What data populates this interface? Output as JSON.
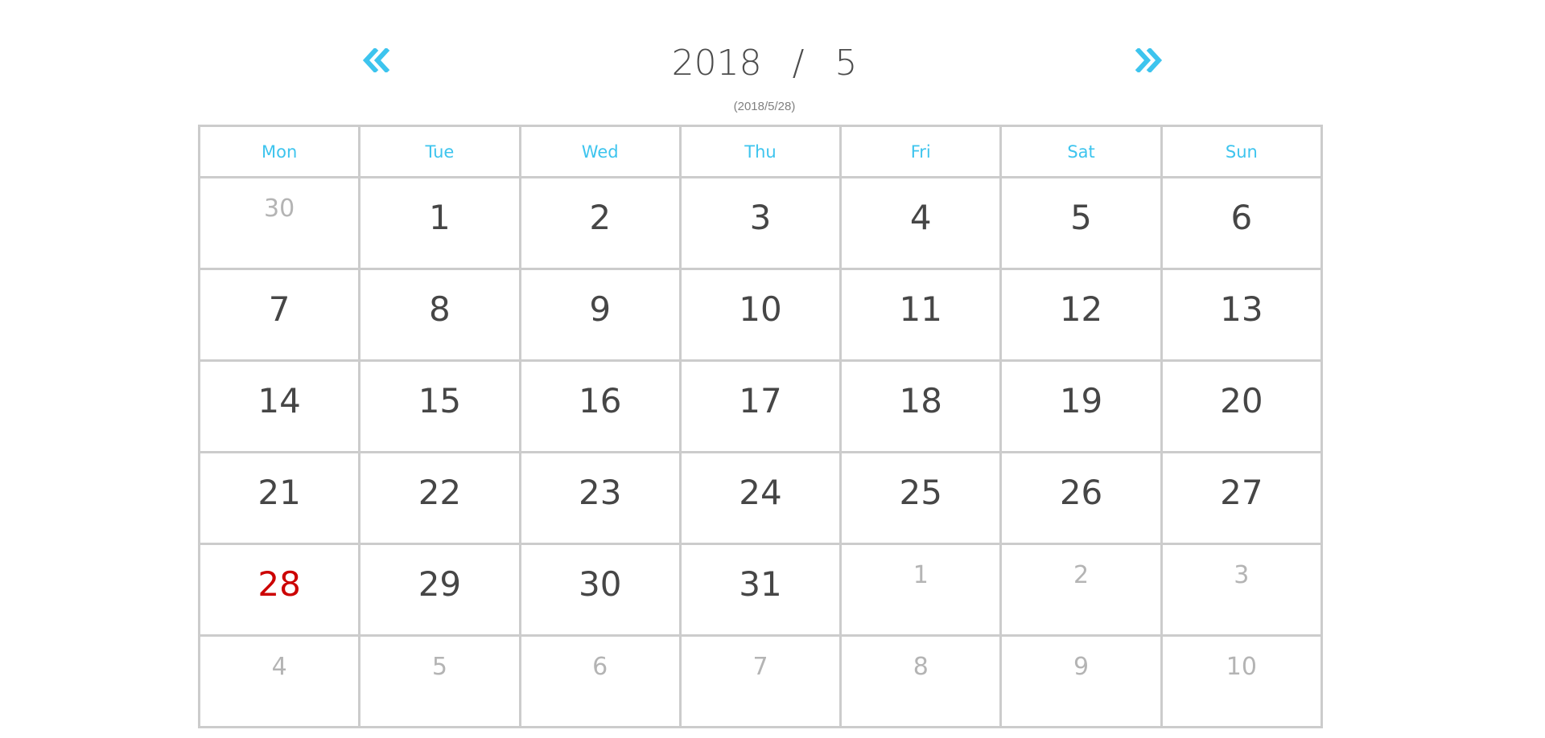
{
  "header": {
    "year": "2018",
    "separator": "/",
    "month": "5",
    "subtitle": "(2018/5/28)",
    "prev_icon": "double-chevron-left-icon",
    "next_icon": "double-chevron-right-icon"
  },
  "colors": {
    "accent": "#3dc4ee",
    "today": "#cc0000",
    "day_text": "#464646",
    "other_month_text": "#b4b4b4",
    "grid_line": "#cccccc"
  },
  "weekdays": [
    "Mon",
    "Tue",
    "Wed",
    "Thu",
    "Fri",
    "Sat",
    "Sun"
  ],
  "weeks": [
    [
      {
        "label": "30",
        "other": true
      },
      {
        "label": "1",
        "other": false
      },
      {
        "label": "2",
        "other": false
      },
      {
        "label": "3",
        "other": false
      },
      {
        "label": "4",
        "other": false
      },
      {
        "label": "5",
        "other": false
      },
      {
        "label": "6",
        "other": false
      }
    ],
    [
      {
        "label": "7",
        "other": false
      },
      {
        "label": "8",
        "other": false
      },
      {
        "label": "9",
        "other": false
      },
      {
        "label": "10",
        "other": false
      },
      {
        "label": "11",
        "other": false
      },
      {
        "label": "12",
        "other": false
      },
      {
        "label": "13",
        "other": false
      }
    ],
    [
      {
        "label": "14",
        "other": false
      },
      {
        "label": "15",
        "other": false
      },
      {
        "label": "16",
        "other": false
      },
      {
        "label": "17",
        "other": false
      },
      {
        "label": "18",
        "other": false
      },
      {
        "label": "19",
        "other": false
      },
      {
        "label": "20",
        "other": false
      }
    ],
    [
      {
        "label": "21",
        "other": false
      },
      {
        "label": "22",
        "other": false
      },
      {
        "label": "23",
        "other": false
      },
      {
        "label": "24",
        "other": false
      },
      {
        "label": "25",
        "other": false
      },
      {
        "label": "26",
        "other": false
      },
      {
        "label": "27",
        "other": false
      }
    ],
    [
      {
        "label": "28",
        "other": false,
        "today": true
      },
      {
        "label": "29",
        "other": false
      },
      {
        "label": "30",
        "other": false
      },
      {
        "label": "31",
        "other": false
      },
      {
        "label": "1",
        "other": true
      },
      {
        "label": "2",
        "other": true
      },
      {
        "label": "3",
        "other": true
      }
    ],
    [
      {
        "label": "4",
        "other": true
      },
      {
        "label": "5",
        "other": true
      },
      {
        "label": "6",
        "other": true
      },
      {
        "label": "7",
        "other": true
      },
      {
        "label": "8",
        "other": true
      },
      {
        "label": "9",
        "other": true
      },
      {
        "label": "10",
        "other": true
      }
    ]
  ]
}
